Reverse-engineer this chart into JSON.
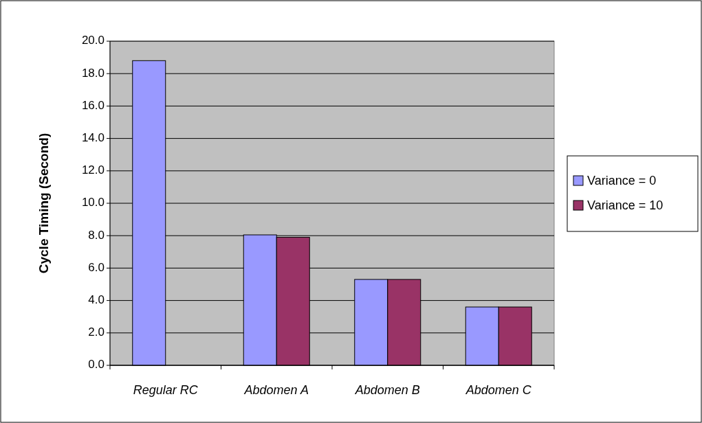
{
  "chart_data": {
    "type": "bar",
    "ylabel": "Cycle Timing (Second)",
    "categories": [
      "Regular RC",
      "Abdomen A",
      "Abdomen B",
      "Abdomen C"
    ],
    "series": [
      {
        "name": "Variance = 0",
        "color": "#9999ff",
        "values": [
          18.8,
          8.05,
          5.3,
          3.6
        ]
      },
      {
        "name": "Variance = 10",
        "color": "#993366",
        "values": [
          null,
          7.9,
          5.3,
          3.6
        ]
      }
    ],
    "ylim": [
      0,
      20
    ],
    "yticks": [
      {
        "value": 0,
        "label": "0.0"
      },
      {
        "value": 2,
        "label": "2.0"
      },
      {
        "value": 4,
        "label": "4.0"
      },
      {
        "value": 6,
        "label": "6.0"
      },
      {
        "value": 8,
        "label": "8.0"
      },
      {
        "value": 10,
        "label": "10.0"
      },
      {
        "value": 12,
        "label": "12.0"
      },
      {
        "value": 14,
        "label": "14.0"
      },
      {
        "value": 16,
        "label": "16.0"
      },
      {
        "value": 18,
        "label": "18.0"
      },
      {
        "value": 20,
        "label": "20.0"
      }
    ],
    "grid": "y",
    "legend": "right"
  }
}
